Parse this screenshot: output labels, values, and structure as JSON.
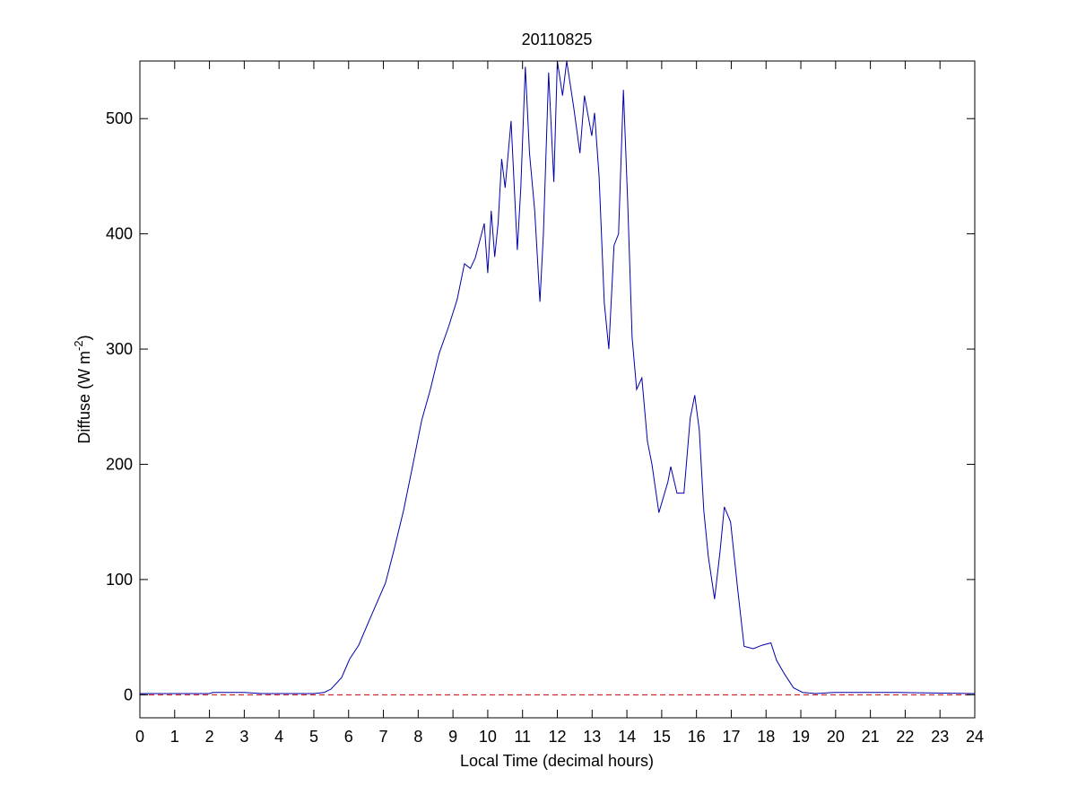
{
  "chart_data": {
    "type": "line",
    "title": "20110825",
    "xlabel": "Local Time (decimal hours)",
    "ylabel": [
      "Diffuse (W m",
      "-2",
      ")"
    ],
    "xlim": [
      0,
      24
    ],
    "xticks": [
      0,
      1,
      2,
      3,
      4,
      5,
      6,
      7,
      8,
      9,
      10,
      11,
      12,
      13,
      14,
      15,
      16,
      17,
      18,
      19,
      20,
      21,
      22,
      23,
      24
    ],
    "ylim": [
      -20,
      550
    ],
    "yticks": [
      0,
      100,
      200,
      300,
      400,
      500
    ],
    "series": [
      {
        "color": "#0000aa",
        "style": "solid",
        "x": [
          0,
          1,
          2,
          2.1,
          3,
          3.5,
          5,
          5.3,
          5.5,
          5.8,
          6.03,
          6.29,
          6.6,
          7.06,
          7.3,
          7.58,
          7.85,
          8.1,
          8.35,
          8.6,
          8.87,
          9.12,
          9.33,
          9.5,
          9.64,
          9.9,
          10.0,
          10.1,
          10.2,
          10.3,
          10.4,
          10.5,
          10.67,
          10.85,
          10.95,
          11.08,
          11.2,
          11.35,
          11.5,
          11.6,
          11.75,
          11.9,
          12.0,
          12.15,
          12.27,
          12.47,
          12.65,
          12.78,
          12.99,
          13.07,
          13.2,
          13.35,
          13.48,
          13.63,
          13.76,
          13.9,
          14.02,
          14.15,
          14.28,
          14.43,
          14.59,
          14.72,
          14.92,
          15.18,
          15.26,
          15.44,
          15.64,
          15.82,
          15.95,
          16.08,
          16.21,
          16.34,
          16.52,
          16.68,
          16.8,
          16.98,
          17.19,
          17.37,
          17.63,
          17.89,
          18.14,
          18.3,
          18.53,
          18.79,
          19.05,
          19.43,
          19.95,
          21.75,
          24
        ],
        "values": [
          1,
          1,
          1,
          2,
          2,
          1,
          1,
          2,
          5,
          15,
          31,
          43,
          65,
          97,
          125,
          160,
          200,
          238,
          265,
          296,
          319,
          343,
          374,
          370,
          379,
          409,
          366,
          420,
          380,
          410,
          465,
          440,
          498,
          386,
          440,
          545,
          470,
          420,
          341,
          400,
          540,
          445,
          550,
          520,
          550,
          510,
          470,
          520,
          485,
          505,
          450,
          340,
          300,
          390,
          400,
          525,
          430,
          310,
          265,
          275,
          220,
          200,
          158,
          185,
          198,
          175,
          175,
          240,
          260,
          230,
          160,
          120,
          83,
          125,
          163,
          150,
          90,
          42,
          40,
          43,
          45,
          30,
          18,
          6,
          2,
          1,
          2,
          2,
          1
        ]
      },
      {
        "color": "#cc0000",
        "style": "dashed",
        "x": [
          0,
          24
        ],
        "values": [
          0,
          0
        ]
      }
    ]
  }
}
